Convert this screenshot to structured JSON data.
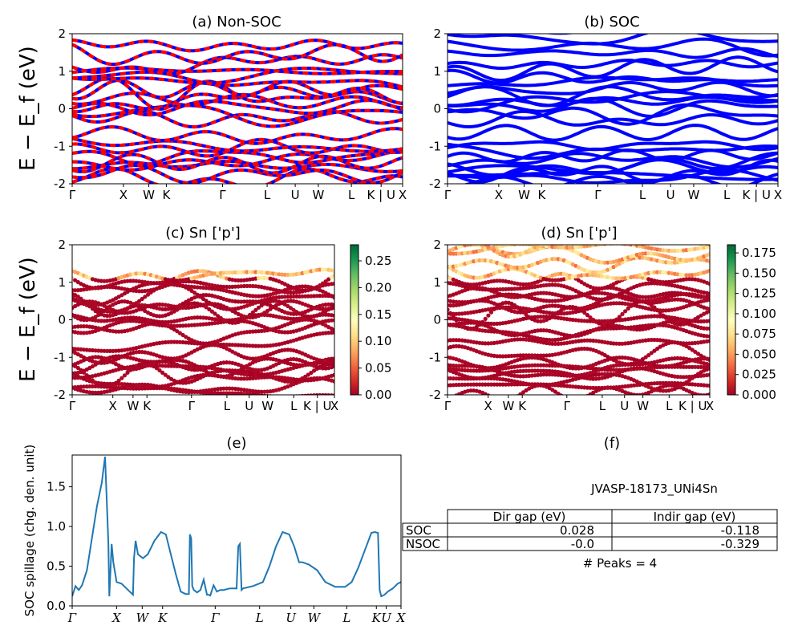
{
  "panels": {
    "a": {
      "title": "(a) Non-SOC",
      "ylabel": "E − E_f (eV)",
      "ylim": [
        -2,
        2
      ],
      "yticks": [
        "-2",
        "-1",
        "0",
        "1",
        "2"
      ],
      "kpath": [
        "Γ",
        "X",
        "W",
        "K",
        "Γ",
        "L",
        "U",
        "W",
        "L",
        "K | U",
        "X"
      ],
      "kpos": [
        0,
        0.155,
        0.232,
        0.285,
        0.455,
        0.59,
        0.675,
        0.745,
        0.845,
        0.935,
        1.0
      ],
      "colors": [
        "#0000ff",
        "#ff0000"
      ]
    },
    "b": {
      "title": "(b) SOC",
      "ylim": [
        -2,
        2
      ],
      "yticks": [
        "-2",
        "-1",
        "0",
        "1",
        "2"
      ],
      "kpath": [
        "Γ",
        "X",
        "W",
        "K",
        "Γ",
        "L",
        "U",
        "W",
        "L",
        "K | U",
        "X"
      ],
      "kpos": [
        0,
        0.155,
        0.232,
        0.285,
        0.455,
        0.59,
        0.675,
        0.745,
        0.845,
        0.935,
        1.0
      ],
      "colors": [
        "#0000ff"
      ]
    },
    "c": {
      "title": "(c)  Sn ['p']",
      "ylabel": "E − E_f (eV)",
      "ylim": [
        -2,
        2
      ],
      "yticks": [
        "-2",
        "-1",
        "0",
        "1",
        "2"
      ],
      "kpath": [
        "Γ",
        "X",
        "W",
        "K",
        "Γ",
        "L",
        "U",
        "W",
        "L",
        "K | U",
        "X"
      ],
      "kpos": [
        0,
        0.155,
        0.232,
        0.285,
        0.455,
        0.59,
        0.675,
        0.745,
        0.845,
        0.935,
        1.0
      ],
      "colorbar": {
        "ticks": [
          "0.00",
          "0.05",
          "0.10",
          "0.15",
          "0.20",
          "0.25"
        ],
        "values": [
          0,
          0.05,
          0.1,
          0.15,
          0.2,
          0.25
        ],
        "max": 0.28
      }
    },
    "d": {
      "title": "(d) Sn ['p']",
      "ylim": [
        -2,
        2
      ],
      "yticks": [
        "-2",
        "-1",
        "0",
        "1",
        "2"
      ],
      "kpath": [
        "Γ",
        "X",
        "W",
        "K",
        "Γ",
        "L",
        "U",
        "W",
        "L",
        "K | U",
        "X"
      ],
      "kpos": [
        0,
        0.155,
        0.232,
        0.285,
        0.455,
        0.59,
        0.675,
        0.745,
        0.845,
        0.935,
        1.0
      ],
      "colorbar": {
        "ticks": [
          "0.000",
          "0.025",
          "0.050",
          "0.075",
          "0.100",
          "0.125",
          "0.150",
          "0.175"
        ],
        "values": [
          0,
          0.025,
          0.05,
          0.075,
          0.1,
          0.125,
          0.15,
          0.175
        ],
        "max": 0.185
      }
    },
    "e": {
      "title": "(e)",
      "ylabel": "SOC spillage (chg. den. unit)",
      "ylim": [
        0,
        1.9
      ],
      "yticks": [
        "0.0",
        "0.5",
        "1.0",
        "1.5"
      ],
      "ytick_values": [
        0,
        0.5,
        1.0,
        1.5
      ],
      "kpath": [
        "Γ",
        "X",
        "W",
        "K",
        "Γ",
        "L",
        "U",
        "W",
        "L",
        "K",
        "U",
        "X"
      ],
      "kpos": [
        0,
        0.135,
        0.213,
        0.275,
        0.435,
        0.57,
        0.665,
        0.735,
        0.835,
        0.925,
        0.955,
        1.0
      ],
      "color": "#1f77b4"
    },
    "f": {
      "title": "(f)",
      "material": "JVASP-18173_UNi4Sn",
      "table": {
        "columns": [
          "",
          "Dir gap (eV)",
          "Indir gap (eV)"
        ],
        "rows": [
          {
            "label": "SOC",
            "dir": "0.028",
            "indir": "-0.118"
          },
          {
            "label": "NSOC",
            "dir": "-0.0",
            "indir": "-0.329"
          }
        ]
      },
      "peaks": "# Peaks = 4"
    }
  },
  "chart_data": [
    {
      "type": "line",
      "title": "(a) Non-SOC",
      "ylabel": "E − E_f (eV)",
      "ylim": [
        -2,
        2
      ],
      "xticks": [
        "Γ",
        "X",
        "W",
        "K",
        "Γ",
        "L",
        "U",
        "W",
        "L",
        "K | U",
        "X"
      ]
    },
    {
      "type": "line",
      "title": "(b) SOC",
      "ylim": [
        -2,
        2
      ],
      "xticks": [
        "Γ",
        "X",
        "W",
        "K",
        "Γ",
        "L",
        "U",
        "W",
        "L",
        "K | U",
        "X"
      ]
    },
    {
      "type": "scatter",
      "title": "(c)  Sn ['p']",
      "ylabel": "E − E_f (eV)",
      "ylim": [
        -2,
        2
      ],
      "colorbar_range": [
        0,
        0.28
      ]
    },
    {
      "type": "scatter",
      "title": "(d) Sn ['p']",
      "ylim": [
        -2,
        2
      ],
      "colorbar_range": [
        0,
        0.185
      ]
    },
    {
      "type": "line",
      "title": "(e)",
      "ylabel": "SOC spillage (chg. den. unit)",
      "ylim": [
        0,
        1.9
      ],
      "series": [
        {
          "x": [
            0,
            0.01,
            0.02,
            0.03,
            0.045,
            0.06,
            0.075,
            0.09,
            0.1,
            0.11,
            0.113,
            0.117,
            0.12,
            0.125,
            0.135,
            0.15,
            0.17,
            0.185,
            0.188,
            0.193,
            0.2,
            0.215,
            0.23,
            0.25,
            0.27,
            0.285,
            0.3,
            0.315,
            0.33,
            0.345,
            0.355,
            0.358,
            0.362,
            0.365,
            0.37,
            0.38,
            0.39,
            0.4,
            0.41,
            0.415,
            0.42,
            0.43,
            0.44,
            0.45,
            0.455,
            0.46,
            0.48,
            0.5,
            0.505,
            0.51,
            0.515,
            0.52,
            0.55,
            0.58,
            0.6,
            0.62,
            0.64,
            0.66,
            0.675,
            0.69,
            0.7,
            0.72,
            0.745,
            0.77,
            0.8,
            0.83,
            0.85,
            0.87,
            0.89,
            0.91,
            0.92,
            0.93,
            0.935,
            0.94,
            0.95,
            0.96,
            0.975,
            0.99,
            1.0
          ],
          "y": [
            0.12,
            0.25,
            0.2,
            0.26,
            0.45,
            0.85,
            1.25,
            1.55,
            1.88,
            0.8,
            0.12,
            0.5,
            0.78,
            0.55,
            0.3,
            0.28,
            0.2,
            0.14,
            0.6,
            0.82,
            0.65,
            0.6,
            0.65,
            0.82,
            0.93,
            0.9,
            0.65,
            0.4,
            0.18,
            0.15,
            0.15,
            0.9,
            0.85,
            0.25,
            0.2,
            0.17,
            0.2,
            0.33,
            0.14,
            0.14,
            0.13,
            0.26,
            0.18,
            0.2,
            0.2,
            0.2,
            0.22,
            0.22,
            0.75,
            0.78,
            0.2,
            0.22,
            0.25,
            0.3,
            0.5,
            0.75,
            0.93,
            0.9,
            0.75,
            0.55,
            0.55,
            0.52,
            0.45,
            0.3,
            0.24,
            0.24,
            0.3,
            0.48,
            0.7,
            0.92,
            0.93,
            0.92,
            0.2,
            0.12,
            0.14,
            0.18,
            0.22,
            0.28,
            0.3
          ]
        }
      ]
    }
  ]
}
